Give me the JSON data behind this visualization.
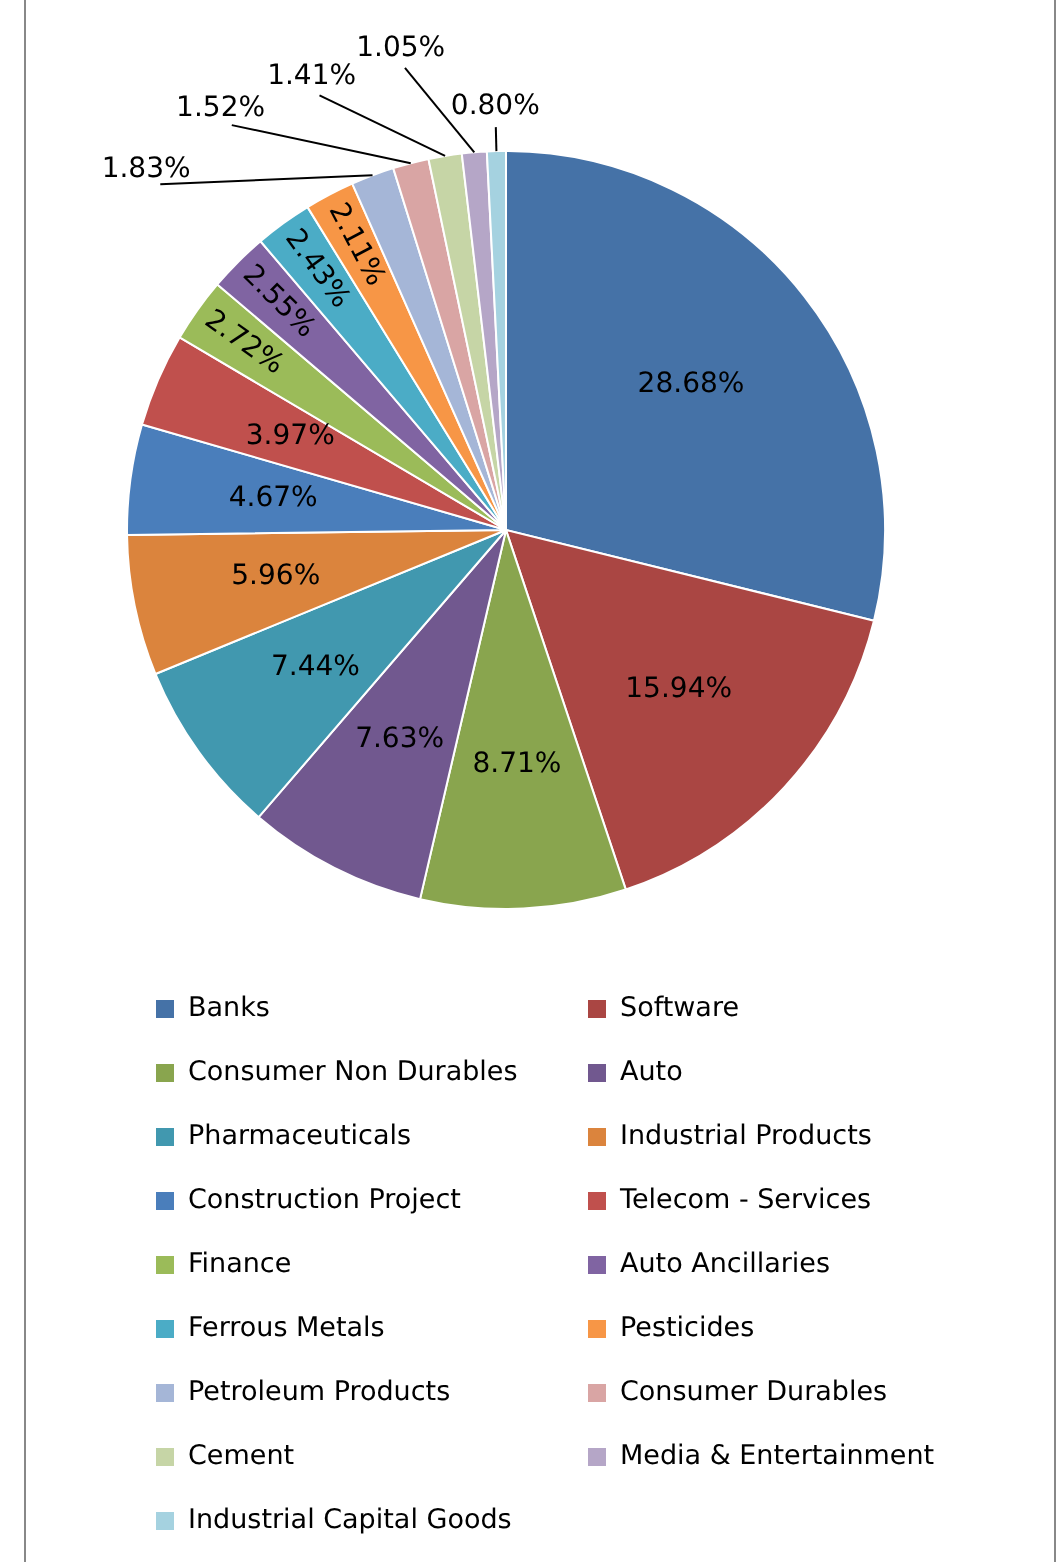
{
  "chart_data": {
    "type": "pie",
    "categories": [
      "Banks",
      "Software",
      "Consumer Non Durables",
      "Auto",
      "Pharmaceuticals",
      "Industrial Products",
      "Construction Project",
      "Telecom - Services",
      "Finance",
      "Auto Ancillaries",
      "Ferrous Metals",
      "Pesticides",
      "Petroleum Products",
      "Consumer Durables",
      "Cement",
      "Media & Entertainment",
      "Industrial Capital Goods"
    ],
    "values": [
      28.68,
      15.94,
      8.71,
      7.63,
      7.44,
      5.96,
      4.67,
      3.97,
      2.72,
      2.55,
      2.43,
      2.11,
      1.83,
      1.52,
      1.41,
      1.05,
      0.8
    ],
    "colors": [
      "#4572a7",
      "#aa4643",
      "#89a54e",
      "#71588f",
      "#4198af",
      "#db843d",
      "#4a7ebb",
      "#c0504d",
      "#9bbb59",
      "#8064a2",
      "#4bacc6",
      "#f79646",
      "#a5b6d7",
      "#d9a5a4",
      "#c6d5a6",
      "#b5a6c7",
      "#a5d2e0"
    ],
    "value_labels": [
      "28.68%",
      "15.94%",
      "8.71%",
      "7.63%",
      "7.44%",
      "5.96%",
      "4.67%",
      "3.97%",
      "2.72%",
      "2.55%",
      "2.43%",
      "2.11%",
      "1.83%",
      "1.52%",
      "1.41%",
      "1.05%",
      "0.80%"
    ],
    "legend": "bottom"
  }
}
